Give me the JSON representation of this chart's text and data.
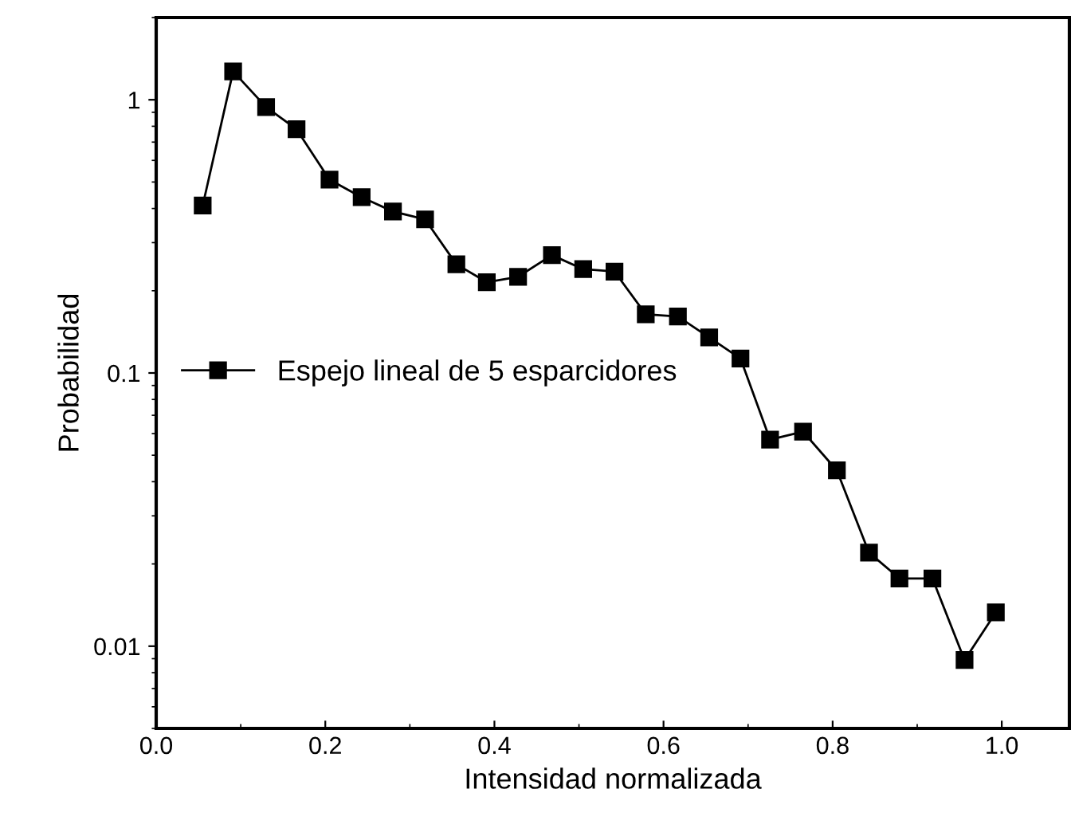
{
  "chart_data": {
    "type": "line",
    "xlabel": "Intensidad normalizada",
    "ylabel": "Probabilidad",
    "x": [
      0.055,
      0.091,
      0.13,
      0.166,
      0.205,
      0.243,
      0.28,
      0.318,
      0.355,
      0.391,
      0.428,
      0.468,
      0.505,
      0.542,
      0.579,
      0.617,
      0.654,
      0.691,
      0.726,
      0.765,
      0.805,
      0.843,
      0.879,
      0.918,
      0.956,
      0.993
    ],
    "series": [
      {
        "name": "Espejo lineal de 5 esparcidores",
        "color": "#000000",
        "values": [
          0.41,
          1.27,
          0.94,
          0.78,
          0.51,
          0.44,
          0.39,
          0.365,
          0.25,
          0.215,
          0.225,
          0.27,
          0.24,
          0.235,
          0.164,
          0.161,
          0.135,
          0.113,
          0.057,
          0.061,
          0.044,
          0.022,
          0.0177,
          0.0177,
          0.0089,
          0.0133
        ]
      }
    ],
    "log": "y",
    "xlim": [
      0.0,
      1.08
    ],
    "ylim": [
      0.005,
      2
    ],
    "xticks": [
      {
        "value": 0,
        "label": "0.0"
      },
      0.2,
      0.4,
      0.6,
      0.8,
      {
        "value": 1,
        "label": "1.0"
      }
    ],
    "yticks": [
      0.01,
      0.1,
      1
    ],
    "marker": "square",
    "line_style": "solid",
    "legend": "left",
    "grid": false
  }
}
